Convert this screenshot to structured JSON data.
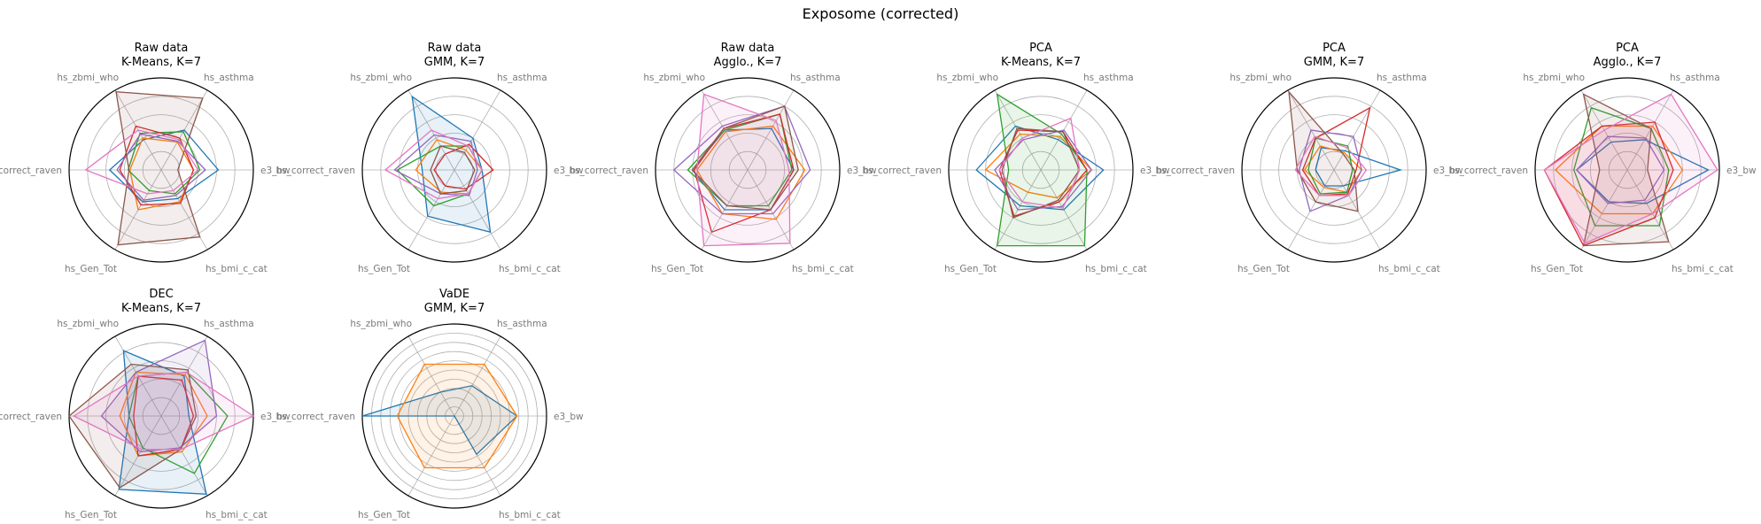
{
  "figure": {
    "suptitle": "Exposome (corrected)",
    "axis_labels": [
      "e3_bw",
      "hs_asthma",
      "hs_zbmi_who",
      "hs_correct_raven",
      "hs_Gen_Tot",
      "hs_bmi_c_cat"
    ],
    "palette": [
      "#1f77b4",
      "#ff7f0e",
      "#2ca02c",
      "#d62728",
      "#9467bd",
      "#8c564b",
      "#e377c2"
    ]
  },
  "chart_data": [
    {
      "type": "radar",
      "title_line1": "Raw data",
      "title_line2": "K-Means, K=7",
      "rmax": 1,
      "grid": true,
      "categories": [
        "e3_bw",
        "hs_asthma",
        "hs_zbmi_who",
        "hs_correct_raven",
        "hs_Gen_Tot",
        "hs_bmi_c_cat"
      ],
      "series": [
        {
          "values": [
            0.62,
            0.5,
            0.38,
            0.56,
            0.4,
            0.36
          ],
          "fill": false
        },
        {
          "values": [
            0.35,
            0.35,
            0.4,
            0.34,
            0.5,
            0.4
          ],
          "fill": false
        },
        {
          "values": [
            0.42,
            0.48,
            0.46,
            0.36,
            0.26,
            0.3
          ],
          "fill": false
        },
        {
          "values": [
            0.35,
            0.4,
            0.55,
            0.45,
            0.44,
            0.42
          ],
          "fill": false
        },
        {
          "values": [
            0.48,
            0.36,
            0.45,
            0.48,
            0.38,
            0.32
          ],
          "fill": false
        },
        {
          "values": [
            0.18,
            0.9,
            0.98,
            0.35,
            0.94,
            0.84
          ],
          "fill": true
        },
        {
          "values": [
            0.4,
            0.38,
            0.5,
            0.82,
            0.3,
            0.26
          ],
          "fill": false
        }
      ]
    },
    {
      "type": "radar",
      "title_line1": "Raw data",
      "title_line2": "GMM, K=7",
      "rmax": 1,
      "grid": true,
      "categories": [
        "e3_bw",
        "hs_asthma",
        "hs_zbmi_who",
        "hs_correct_raven",
        "hs_Gen_Tot",
        "hs_bmi_c_cat"
      ],
      "series": [
        {
          "values": [
            0.3,
            0.4,
            0.92,
            0.35,
            0.58,
            0.78
          ],
          "fill": true
        },
        {
          "values": [
            0.3,
            0.25,
            0.38,
            0.42,
            0.28,
            0.3
          ],
          "fill": false
        },
        {
          "values": [
            0.3,
            0.3,
            0.3,
            0.62,
            0.45,
            0.3
          ],
          "fill": false
        },
        {
          "values": [
            0.42,
            0.32,
            0.2,
            0.22,
            0.2,
            0.24
          ],
          "fill": false
        },
        {
          "values": [
            0.25,
            0.36,
            0.44,
            0.65,
            0.3,
            0.32
          ],
          "fill": false
        },
        {
          "values": [
            0.22,
            0.22,
            0.3,
            0.26,
            0.3,
            0.26
          ],
          "fill": false
        },
        {
          "values": [
            0.3,
            0.3,
            0.5,
            0.75,
            0.36,
            0.3
          ],
          "fill": false
        }
      ]
    },
    {
      "type": "radar",
      "title_line1": "Raw data",
      "title_line2": "Agglo., K=7",
      "rmax": 1,
      "grid": true,
      "categories": [
        "e3_bw",
        "hs_asthma",
        "hs_zbmi_who",
        "hs_correct_raven",
        "hs_Gen_Tot",
        "hs_bmi_c_cat"
      ],
      "series": [
        {
          "values": [
            0.5,
            0.52,
            0.5,
            0.6,
            0.5,
            0.5
          ],
          "fill": false
        },
        {
          "values": [
            0.62,
            0.55,
            0.48,
            0.55,
            0.55,
            0.62
          ],
          "fill": false
        },
        {
          "values": [
            0.48,
            0.7,
            0.5,
            0.65,
            0.45,
            0.45
          ],
          "fill": false
        },
        {
          "values": [
            0.5,
            0.7,
            0.52,
            0.58,
            0.78,
            0.5
          ],
          "fill": false
        },
        {
          "values": [
            0.68,
            0.8,
            0.55,
            0.8,
            0.55,
            0.55
          ],
          "fill": false
        },
        {
          "values": [
            0.55,
            0.8,
            0.52,
            0.6,
            0.45,
            0.5
          ],
          "fill": true
        },
        {
          "values": [
            0.45,
            0.62,
            0.95,
            0.55,
            0.95,
            0.92
          ],
          "fill": true
        }
      ]
    },
    {
      "type": "radar",
      "title_line1": "PCA",
      "title_line2": "K-Means, K=7",
      "rmax": 1,
      "grid": true,
      "categories": [
        "e3_bw",
        "hs_asthma",
        "hs_zbmi_who",
        "hs_correct_raven",
        "hs_Gen_Tot",
        "hs_bmi_c_cat"
      ],
      "series": [
        {
          "values": [
            0.68,
            0.38,
            0.55,
            0.7,
            0.45,
            0.5
          ],
          "fill": false
        },
        {
          "values": [
            0.55,
            0.42,
            0.45,
            0.6,
            0.28,
            0.35
          ],
          "fill": false
        },
        {
          "values": [
            0.5,
            0.45,
            0.95,
            0.35,
            0.95,
            0.95
          ],
          "fill": true
        },
        {
          "values": [
            0.5,
            0.48,
            0.5,
            0.45,
            0.58,
            0.4
          ],
          "fill": false
        },
        {
          "values": [
            0.55,
            0.5,
            0.38,
            0.5,
            0.5,
            0.46
          ],
          "fill": false
        },
        {
          "values": [
            0.42,
            0.48,
            0.52,
            0.42,
            0.6,
            0.38
          ],
          "fill": false
        },
        {
          "values": [
            0.42,
            0.65,
            0.4,
            0.45,
            0.4,
            0.48
          ],
          "fill": false
        }
      ]
    },
    {
      "type": "radar",
      "title_line1": "PCA",
      "title_line2": "GMM, K=7",
      "rmax": 1,
      "grid": true,
      "categories": [
        "e3_bw",
        "hs_asthma",
        "hs_zbmi_who",
        "hs_correct_raven",
        "hs_Gen_Tot",
        "hs_bmi_c_cat"
      ],
      "series": [
        {
          "values": [
            0.72,
            0.24,
            0.28,
            0.2,
            0.2,
            0.2
          ],
          "fill": false
        },
        {
          "values": [
            0.3,
            0.22,
            0.3,
            0.32,
            0.22,
            0.28
          ],
          "fill": false
        },
        {
          "values": [
            0.2,
            0.3,
            0.4,
            0.28,
            0.3,
            0.28
          ],
          "fill": false
        },
        {
          "values": [
            0.24,
            0.78,
            0.4,
            0.34,
            0.32,
            0.3
          ],
          "fill": false
        },
        {
          "values": [
            0.3,
            0.42,
            0.5,
            0.38,
            0.52,
            0.32
          ],
          "fill": false
        },
        {
          "values": [
            0.22,
            0.2,
            0.98,
            0.4,
            0.4,
            0.52
          ],
          "fill": true
        },
        {
          "values": [
            0.35,
            0.28,
            0.42,
            0.42,
            0.32,
            0.32
          ],
          "fill": false
        }
      ]
    },
    {
      "type": "radar",
      "title_line1": "PCA",
      "title_line2": "Agglo., K=7",
      "rmax": 1,
      "grid": true,
      "categories": [
        "e3_bw",
        "hs_asthma",
        "hs_zbmi_who",
        "hs_correct_raven",
        "hs_Gen_Tot",
        "hs_bmi_c_cat"
      ],
      "series": [
        {
          "values": [
            0.88,
            0.38,
            0.35,
            0.55,
            0.4,
            0.42
          ],
          "fill": false
        },
        {
          "values": [
            0.6,
            0.55,
            0.55,
            0.78,
            0.55,
            0.55
          ],
          "fill": false
        },
        {
          "values": [
            0.45,
            0.52,
            0.78,
            0.58,
            0.7,
            0.7
          ],
          "fill": false
        },
        {
          "values": [
            0.5,
            0.6,
            0.55,
            0.9,
            0.95,
            0.6
          ],
          "fill": true
        },
        {
          "values": [
            0.4,
            0.4,
            0.42,
            0.55,
            0.42,
            0.38
          ],
          "fill": false
        },
        {
          "values": [
            0.22,
            0.52,
            0.95,
            0.3,
            0.95,
            0.9
          ],
          "fill": true
        },
        {
          "values": [
            0.98,
            0.95,
            0.5,
            0.9,
            0.92,
            0.55
          ],
          "fill": true
        }
      ]
    },
    {
      "type": "radar",
      "title_line1": "DEC",
      "title_line2": "K-Means, K=7",
      "rmax": 1,
      "grid": true,
      "categories": [
        "e3_bw",
        "hs_asthma",
        "hs_zbmi_who",
        "hs_correct_raven",
        "hs_Gen_Tot",
        "hs_bmi_c_cat"
      ],
      "series": [
        {
          "values": [
            0.3,
            0.5,
            0.82,
            0.35,
            0.92,
            0.98
          ],
          "fill": true
        },
        {
          "values": [
            0.5,
            0.52,
            0.55,
            0.45,
            0.5,
            0.45
          ],
          "fill": false
        },
        {
          "values": [
            0.72,
            0.55,
            0.5,
            0.35,
            0.4,
            0.72
          ],
          "fill": false
        },
        {
          "values": [
            0.35,
            0.45,
            0.5,
            0.3,
            0.5,
            0.42
          ],
          "fill": false
        },
        {
          "values": [
            0.6,
            0.95,
            0.55,
            0.65,
            0.45,
            0.4
          ],
          "fill": true
        },
        {
          "values": [
            0.38,
            0.58,
            0.65,
            1.0,
            0.9,
            0.42
          ],
          "fill": true
        },
        {
          "values": [
            1.0,
            0.55,
            0.5,
            0.95,
            0.42,
            0.42
          ],
          "fill": true
        }
      ]
    },
    {
      "type": "radar",
      "title_line1": "VaDE",
      "title_line2": "GMM, K=7",
      "rmax": 1,
      "grid": true,
      "rings": 9,
      "categories": [
        "e3_bw",
        "hs_asthma",
        "hs_zbmi_who",
        "hs_correct_raven",
        "hs_Gen_Tot",
        "hs_bmi_c_cat"
      ],
      "series": [
        {
          "values": [
            0.68,
            0.38,
            0.3,
            1.0,
            0.0,
            0.48
          ],
          "fill": true
        },
        {
          "values": [
            0.68,
            0.65,
            0.65,
            0.62,
            0.65,
            0.65
          ],
          "fill": true
        }
      ]
    }
  ]
}
